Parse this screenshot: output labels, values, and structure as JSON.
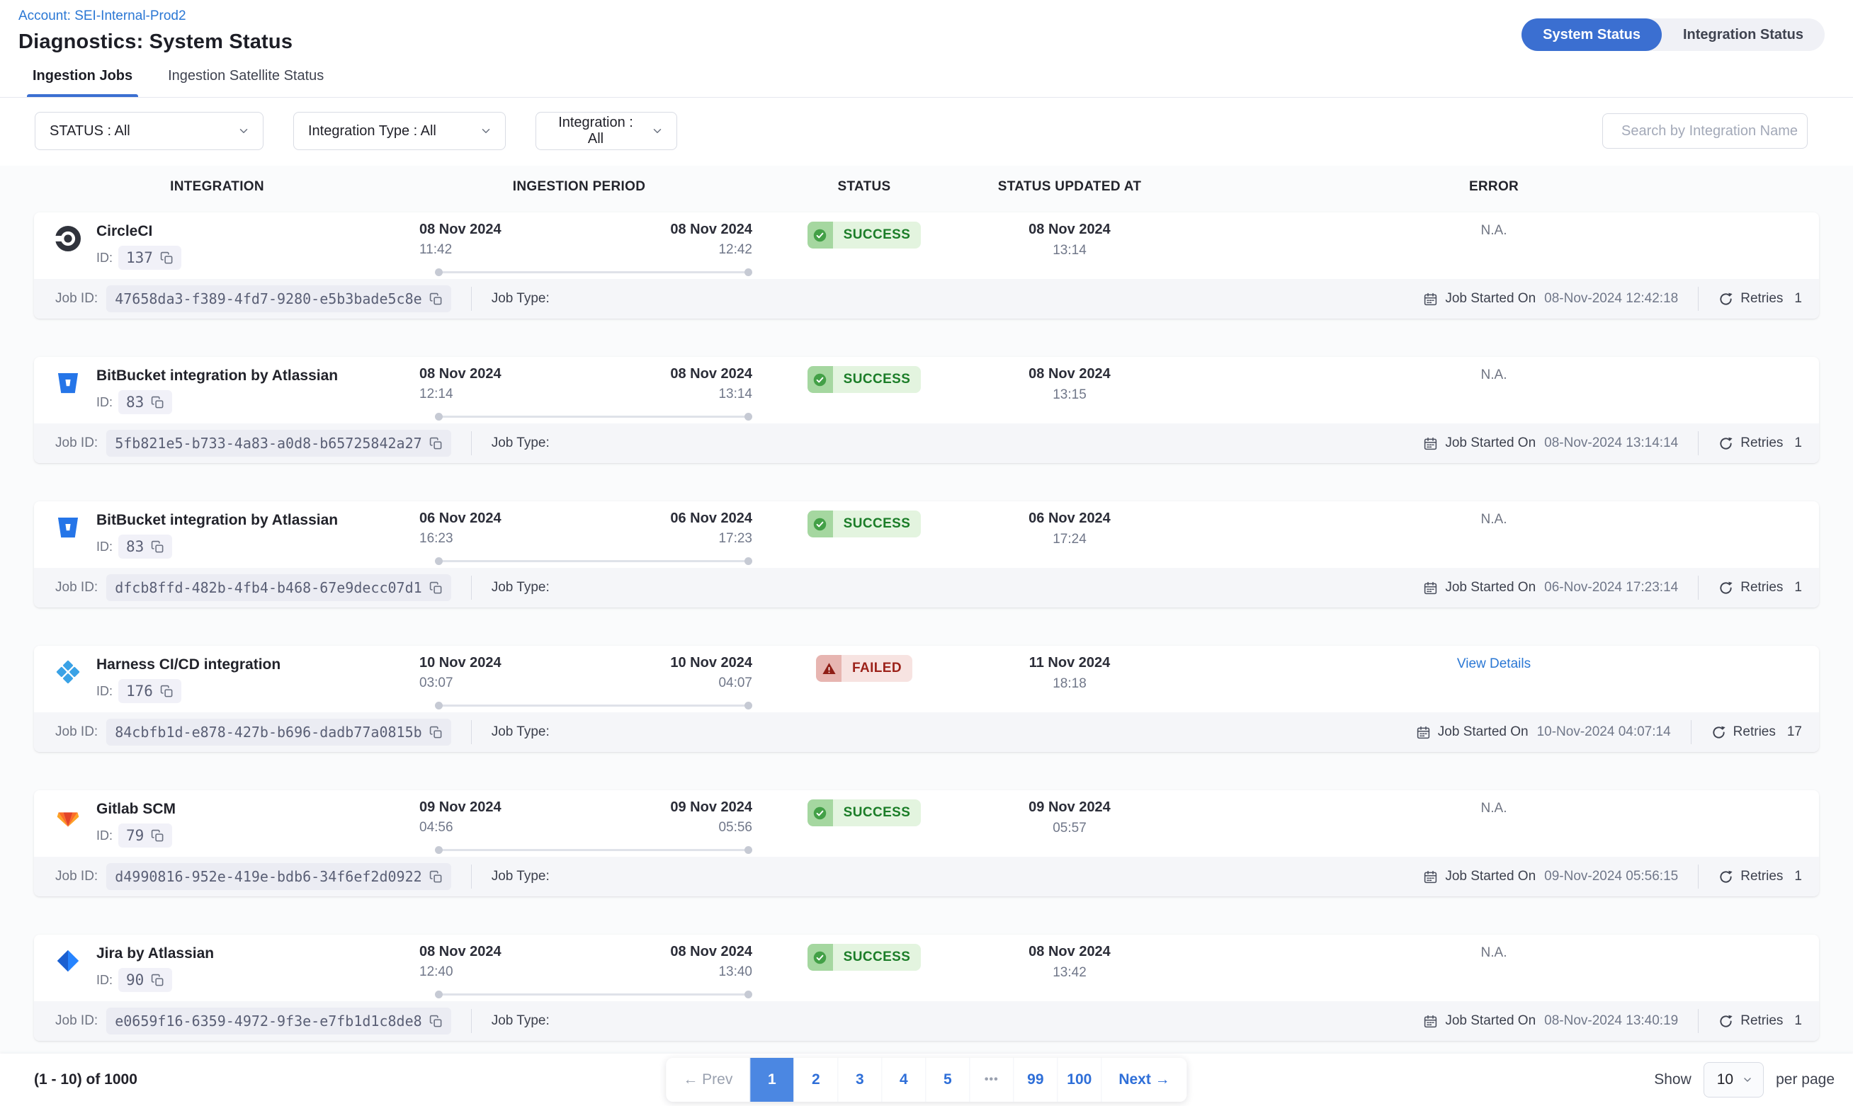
{
  "header": {
    "account_link": "Account: SEI-Internal-Prod2",
    "title": "Diagnostics: System Status",
    "toggle": {
      "active_label": "System Status",
      "inactive_label": "Integration Status"
    }
  },
  "tabs": [
    {
      "label": "Ingestion Jobs"
    },
    {
      "label": "Ingestion Satellite Status"
    }
  ],
  "filters": [
    {
      "label": "STATUS : All"
    },
    {
      "label": "Integration Type : All"
    },
    {
      "label": "Integration : All"
    }
  ],
  "search": {
    "placeholder": "Search by Integration Name"
  },
  "table": {
    "columns": [
      "INTEGRATION",
      "INGESTION PERIOD",
      "STATUS",
      "STATUS UPDATED AT",
      "ERROR"
    ],
    "labels": {
      "id": "ID:",
      "job_id": "Job ID:",
      "job_type": "Job Type:",
      "job_started_on": "Job Started On",
      "retries": "Retries"
    },
    "rows": [
      {
        "icon": "circleci",
        "name": "CircleCI",
        "id": "137",
        "start_date": "08 Nov 2024",
        "start_time": "11:42",
        "end_date": "08 Nov 2024",
        "end_time": "12:42",
        "status": "SUCCESS",
        "status_type": "success",
        "updated_date": "08 Nov 2024",
        "updated_time": "13:14",
        "error": "N.A.",
        "error_is_link": false,
        "job_id": "47658da3-f389-4fd7-9280-e5b3bade5c8e",
        "job_started": "08-Nov-2024 12:42:18",
        "retries": "1"
      },
      {
        "icon": "bitbucket",
        "name": "BitBucket integration by Atlassian",
        "id": "83",
        "start_date": "08 Nov 2024",
        "start_time": "12:14",
        "end_date": "08 Nov 2024",
        "end_time": "13:14",
        "status": "SUCCESS",
        "status_type": "success",
        "updated_date": "08 Nov 2024",
        "updated_time": "13:15",
        "error": "N.A.",
        "error_is_link": false,
        "job_id": "5fb821e5-b733-4a83-a0d8-b65725842a27",
        "job_started": "08-Nov-2024 13:14:14",
        "retries": "1"
      },
      {
        "icon": "bitbucket",
        "name": "BitBucket integration by Atlassian",
        "id": "83",
        "start_date": "06 Nov 2024",
        "start_time": "16:23",
        "end_date": "06 Nov 2024",
        "end_time": "17:23",
        "status": "SUCCESS",
        "status_type": "success",
        "updated_date": "06 Nov 2024",
        "updated_time": "17:24",
        "error": "N.A.",
        "error_is_link": false,
        "job_id": "dfcb8ffd-482b-4fb4-b468-67e9decc07d1",
        "job_started": "06-Nov-2024 17:23:14",
        "retries": "1"
      },
      {
        "icon": "harness",
        "name": "Harness CI/CD integration",
        "id": "176",
        "start_date": "10 Nov 2024",
        "start_time": "03:07",
        "end_date": "10 Nov 2024",
        "end_time": "04:07",
        "status": "FAILED",
        "status_type": "failed",
        "updated_date": "11 Nov 2024",
        "updated_time": "18:18",
        "error": "View Details",
        "error_is_link": true,
        "job_id": "84cbfb1d-e878-427b-b696-dadb77a0815b",
        "job_started": "10-Nov-2024 04:07:14",
        "retries": "17"
      },
      {
        "icon": "gitlab",
        "name": "Gitlab SCM",
        "id": "79",
        "start_date": "09 Nov 2024",
        "start_time": "04:56",
        "end_date": "09 Nov 2024",
        "end_time": "05:56",
        "status": "SUCCESS",
        "status_type": "success",
        "updated_date": "09 Nov 2024",
        "updated_time": "05:57",
        "error": "N.A.",
        "error_is_link": false,
        "job_id": "d4990816-952e-419e-bdb6-34f6ef2d0922",
        "job_started": "09-Nov-2024 05:56:15",
        "retries": "1"
      },
      {
        "icon": "jira",
        "name": "Jira by Atlassian",
        "id": "90",
        "start_date": "08 Nov 2024",
        "start_time": "12:40",
        "end_date": "08 Nov 2024",
        "end_time": "13:40",
        "status": "SUCCESS",
        "status_type": "success",
        "updated_date": "08 Nov 2024",
        "updated_time": "13:42",
        "error": "N.A.",
        "error_is_link": false,
        "job_id": "e0659f16-6359-4972-9f3e-e7fb1d1c8de8",
        "job_started": "08-Nov-2024 13:40:19",
        "retries": "1"
      }
    ]
  },
  "pagination": {
    "info": "(1 - 10) of 1000",
    "items": [
      {
        "label": "← Prev",
        "type": "prev"
      },
      {
        "label": "1",
        "type": "active"
      },
      {
        "label": "2",
        "type": "page"
      },
      {
        "label": "3",
        "type": "page"
      },
      {
        "label": "4",
        "type": "page"
      },
      {
        "label": "5",
        "type": "page"
      },
      {
        "label": "•••",
        "type": "ellipsis"
      },
      {
        "label": "99",
        "type": "page"
      },
      {
        "label": "100",
        "type": "page"
      },
      {
        "label": "Next →",
        "type": "next"
      }
    ],
    "show_label": "Show",
    "page_size": "10",
    "per_page_label": "per page"
  },
  "colors": {
    "primary_blue": "#3b6fd1",
    "link_blue": "#2a77d4",
    "success_text": "#1b7d28",
    "failed_text": "#9c221a"
  }
}
